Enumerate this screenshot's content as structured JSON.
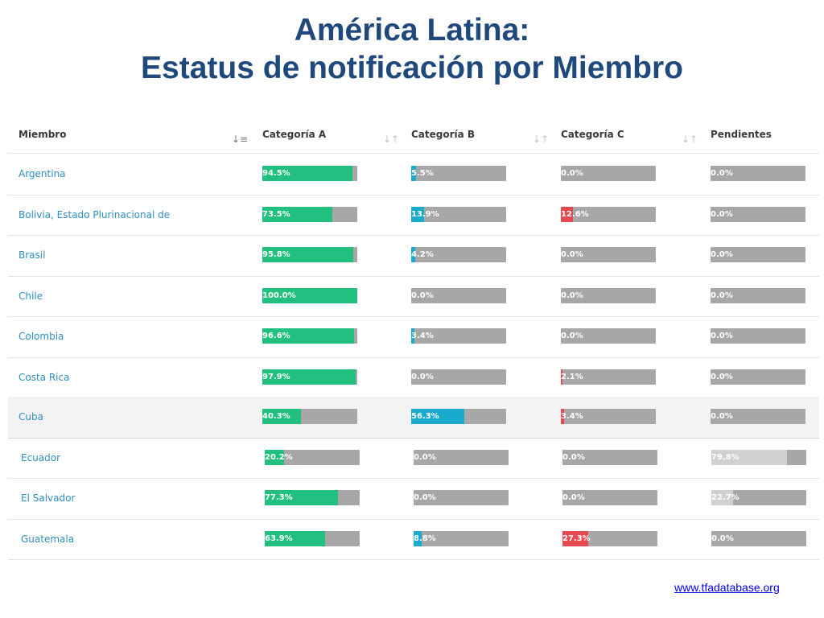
{
  "title": {
    "line1": "América Latina:",
    "line2": "Estatus de notificación por Miembro"
  },
  "columns": {
    "member": "Miembro",
    "cat_a": "Categoría A",
    "cat_b": "Categoría B",
    "cat_c": "Categoría C",
    "pending": "Pendientes"
  },
  "icons": {
    "sort_active": "sort-alpha-icon",
    "sort": "sort-arrows-icon"
  },
  "colors": {
    "cat_a": "#22c07e",
    "cat_b": "#19aacc",
    "cat_c": "#e8484f",
    "pending": "#d0d0d0",
    "track": "#a7a7a7",
    "title": "#1f497d",
    "member_link": "#2f8fc1"
  },
  "rows": [
    {
      "member": "Argentina",
      "a": 94.5,
      "b": 5.5,
      "c": 0.0,
      "p": 0.0,
      "a_label": "94.5%",
      "b_label": "5.5%",
      "c_label": "0.0%",
      "p_label": "0.0%"
    },
    {
      "member": "Bolivia, Estado Plurinacional de",
      "a": 73.5,
      "b": 13.9,
      "c": 12.6,
      "p": 0.0,
      "a_label": "73.5%",
      "b_label": "13.9%",
      "c_label": "12.6%",
      "p_label": "0.0%"
    },
    {
      "member": "Brasil",
      "a": 95.8,
      "b": 4.2,
      "c": 0.0,
      "p": 0.0,
      "a_label": "95.8%",
      "b_label": "4.2%",
      "c_label": "0.0%",
      "p_label": "0.0%"
    },
    {
      "member": "Chile",
      "a": 100.0,
      "b": 0.0,
      "c": 0.0,
      "p": 0.0,
      "a_label": "100.0%",
      "b_label": "0.0%",
      "c_label": "0.0%",
      "p_label": "0.0%"
    },
    {
      "member": "Colombia",
      "a": 96.6,
      "b": 3.4,
      "c": 0.0,
      "p": 0.0,
      "a_label": "96.6%",
      "b_label": "3.4%",
      "c_label": "0.0%",
      "p_label": "0.0%"
    },
    {
      "member": "Costa Rica",
      "a": 97.9,
      "b": 0.0,
      "c": 2.1,
      "p": 0.0,
      "a_label": "97.9%",
      "b_label": "0.0%",
      "c_label": "2.1%",
      "p_label": "0.0%"
    },
    {
      "member": "Cuba",
      "a": 40.3,
      "b": 56.3,
      "c": 3.4,
      "p": 0.0,
      "a_label": "40.3%",
      "b_label": "56.3%",
      "c_label": "3.4%",
      "p_label": "0.0%"
    },
    {
      "member": "Ecuador",
      "a": 20.2,
      "b": 0.0,
      "c": 0.0,
      "p": 79.8,
      "a_label": "20.2%",
      "b_label": "0.0%",
      "c_label": "0.0%",
      "p_label": "79.8%"
    },
    {
      "member": "El Salvador",
      "a": 77.3,
      "b": 0.0,
      "c": 0.0,
      "p": 22.7,
      "a_label": "77.3%",
      "b_label": "0.0%",
      "c_label": "0.0%",
      "p_label": "22.7%"
    },
    {
      "member": "Guatemala",
      "a": 63.9,
      "b": 8.8,
      "c": 27.3,
      "p": 0.0,
      "a_label": "63.9%",
      "b_label": "8.8%",
      "c_label": "27.3%",
      "p_label": "0.0%"
    }
  ],
  "footer": {
    "link": "www.tfadatabase.org"
  }
}
